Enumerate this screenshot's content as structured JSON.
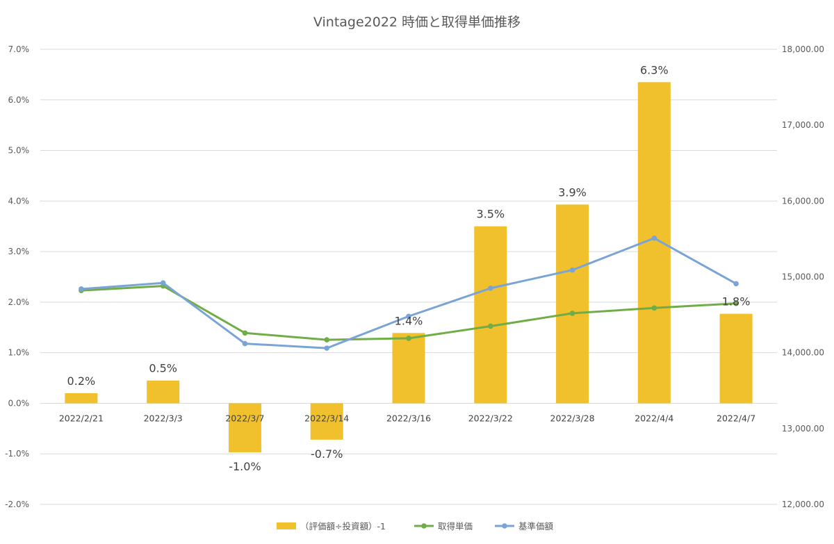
{
  "chart_data": {
    "type": "bar",
    "title": "Vintage2022 時価と取得単価推移",
    "categories": [
      "2022/2/21",
      "2022/3/3",
      "2022/3/7",
      "2022/3/14",
      "2022/3/16",
      "2022/3/22",
      "2022/3/28",
      "2022/4/4",
      "2022/4/7"
    ],
    "left_axis": {
      "min": -0.02,
      "max": 0.07,
      "step": 0.01,
      "tick_labels": [
        "-2.0%",
        "-1.0%",
        "0.0%",
        "1.0%",
        "2.0%",
        "3.0%",
        "4.0%",
        "5.0%",
        "6.0%",
        "7.0%"
      ]
    },
    "right_axis": {
      "min": 12000,
      "max": 18000,
      "step": 1000,
      "tick_labels": [
        "12,000.00",
        "13,000.00",
        "14,000.00",
        "15,000.00",
        "16,000.00",
        "17,000.00",
        "18,000.00"
      ]
    },
    "grid": true,
    "legend_position": "bottom",
    "series": [
      {
        "name": "（評価額÷投資額）-1",
        "type": "bar",
        "axis": "left",
        "color": "#F0C02D",
        "values": [
          0.002,
          0.0045,
          -0.0097,
          -0.0072,
          0.0139,
          0.035,
          0.0393,
          0.0635,
          0.0177
        ],
        "data_labels": [
          "0.2%",
          "0.5%",
          "-1.0%",
          "-0.7%",
          "1.4%",
          "3.5%",
          "3.9%",
          "6.3%",
          "1.8%"
        ]
      },
      {
        "name": "取得単価",
        "type": "line",
        "axis": "right",
        "color": "#70AD47",
        "values": [
          14820,
          14880,
          14260,
          14170,
          14190,
          14350,
          14520,
          14590,
          14650
        ]
      },
      {
        "name": "基準価額",
        "type": "line",
        "axis": "right",
        "color": "#7AA3D6",
        "values": [
          14840,
          14920,
          14120,
          14060,
          14480,
          14850,
          15090,
          15510,
          14910
        ]
      }
    ]
  }
}
